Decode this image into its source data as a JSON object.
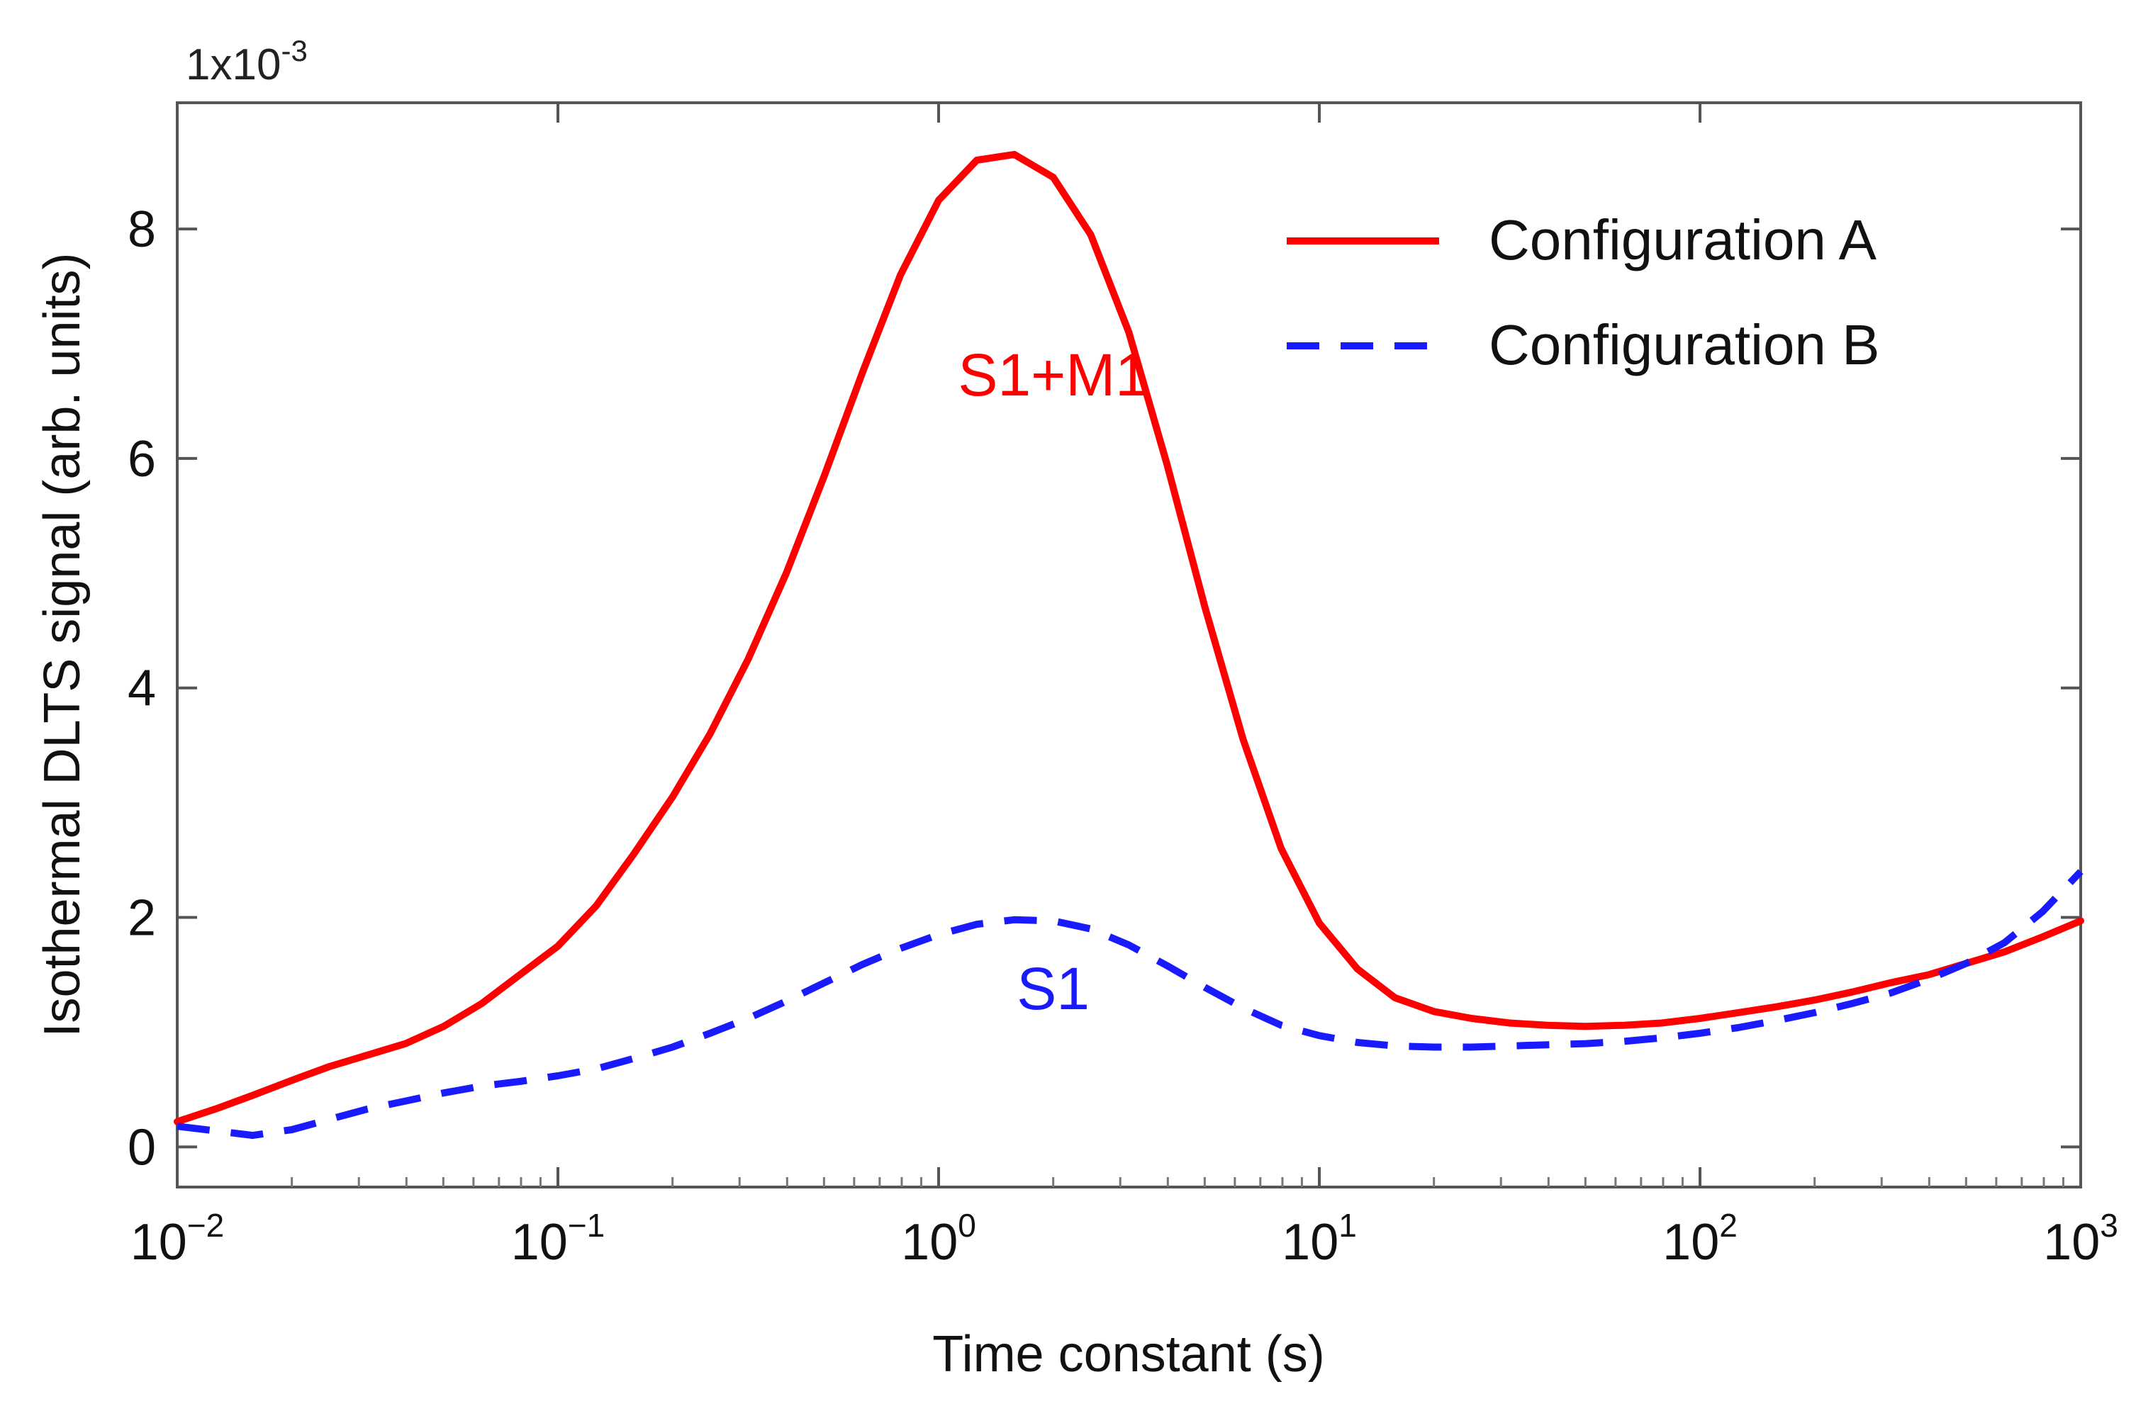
{
  "chart_data": {
    "type": "line",
    "title": "",
    "xlabel": "Time constant (s)",
    "ylabel": "Isothermal DLTS signal (arb. units)",
    "y_multiplier": {
      "base": "1x10",
      "exponent": "-3"
    },
    "x_scale": "log",
    "xlim": [
      0.01,
      1000
    ],
    "ylim": [
      -0.35,
      9.1
    ],
    "grid": false,
    "legend_position": "top-right",
    "x_ticks": [
      {
        "value": 0.01,
        "base": "10",
        "exp": "−2"
      },
      {
        "value": 0.1,
        "base": "10",
        "exp": "−1"
      },
      {
        "value": 1,
        "base": "10",
        "exp": "0"
      },
      {
        "value": 10,
        "base": "10",
        "exp": "1"
      },
      {
        "value": 100,
        "base": "10",
        "exp": "2"
      },
      {
        "value": 1000,
        "base": "10",
        "exp": "3"
      }
    ],
    "y_ticks": [
      {
        "value": 0,
        "label": "0"
      },
      {
        "value": 2,
        "label": "2"
      },
      {
        "value": 4,
        "label": "4"
      },
      {
        "value": 6,
        "label": "6"
      },
      {
        "value": 8,
        "label": "8"
      }
    ],
    "series": [
      {
        "name": "Configuration A",
        "color": "#ff0000",
        "dash": "solid",
        "x": [
          0.01,
          0.0126,
          0.0158,
          0.02,
          0.0251,
          0.0316,
          0.0398,
          0.0501,
          0.0631,
          0.0794,
          0.1,
          0.126,
          0.158,
          0.2,
          0.251,
          0.316,
          0.398,
          0.501,
          0.631,
          0.794,
          1.0,
          1.26,
          1.58,
          2.0,
          2.51,
          3.16,
          3.98,
          5.01,
          6.31,
          7.94,
          10,
          12.6,
          15.8,
          20,
          25.1,
          31.6,
          39.8,
          50.1,
          63.1,
          79.4,
          100,
          126,
          158,
          200,
          251,
          316,
          398,
          501,
          631,
          794,
          1000
        ],
        "values": [
          0.22,
          0.33,
          0.45,
          0.58,
          0.7,
          0.8,
          0.9,
          1.05,
          1.25,
          1.5,
          1.75,
          2.1,
          2.55,
          3.05,
          3.6,
          4.25,
          5.0,
          5.85,
          6.75,
          7.6,
          8.25,
          8.6,
          8.65,
          8.45,
          7.95,
          7.1,
          5.95,
          4.7,
          3.55,
          2.6,
          1.95,
          1.55,
          1.3,
          1.18,
          1.12,
          1.08,
          1.06,
          1.05,
          1.06,
          1.08,
          1.12,
          1.17,
          1.22,
          1.28,
          1.35,
          1.43,
          1.5,
          1.6,
          1.7,
          1.83,
          1.97
        ]
      },
      {
        "name": "Configuration B",
        "color": "#1a1aff",
        "dash": "dashed",
        "x": [
          0.01,
          0.0126,
          0.0158,
          0.02,
          0.0251,
          0.0316,
          0.0398,
          0.0501,
          0.0631,
          0.0794,
          0.1,
          0.126,
          0.158,
          0.2,
          0.251,
          0.316,
          0.398,
          0.501,
          0.631,
          0.794,
          1.0,
          1.26,
          1.58,
          2.0,
          2.51,
          3.16,
          3.98,
          5.01,
          6.31,
          7.94,
          10,
          12.6,
          15.8,
          20,
          25.1,
          31.6,
          39.8,
          50.1,
          63.1,
          79.4,
          100,
          126,
          158,
          200,
          251,
          316,
          398,
          501,
          631,
          794,
          1000
        ],
        "values": [
          0.18,
          0.14,
          0.1,
          0.15,
          0.24,
          0.33,
          0.4,
          0.47,
          0.53,
          0.57,
          0.62,
          0.68,
          0.77,
          0.87,
          0.99,
          1.12,
          1.27,
          1.43,
          1.59,
          1.73,
          1.85,
          1.94,
          1.98,
          1.97,
          1.9,
          1.76,
          1.58,
          1.39,
          1.21,
          1.06,
          0.97,
          0.91,
          0.88,
          0.87,
          0.87,
          0.88,
          0.89,
          0.9,
          0.92,
          0.95,
          0.99,
          1.04,
          1.1,
          1.17,
          1.25,
          1.34,
          1.46,
          1.6,
          1.78,
          2.05,
          2.4
        ]
      }
    ],
    "annotations": [
      {
        "text": "S1+M1",
        "x": 2.0,
        "y": 6.55,
        "color": "#ff0000"
      },
      {
        "text": "S1",
        "x": 2.0,
        "y": 1.2,
        "color": "#1a1aff"
      }
    ]
  }
}
